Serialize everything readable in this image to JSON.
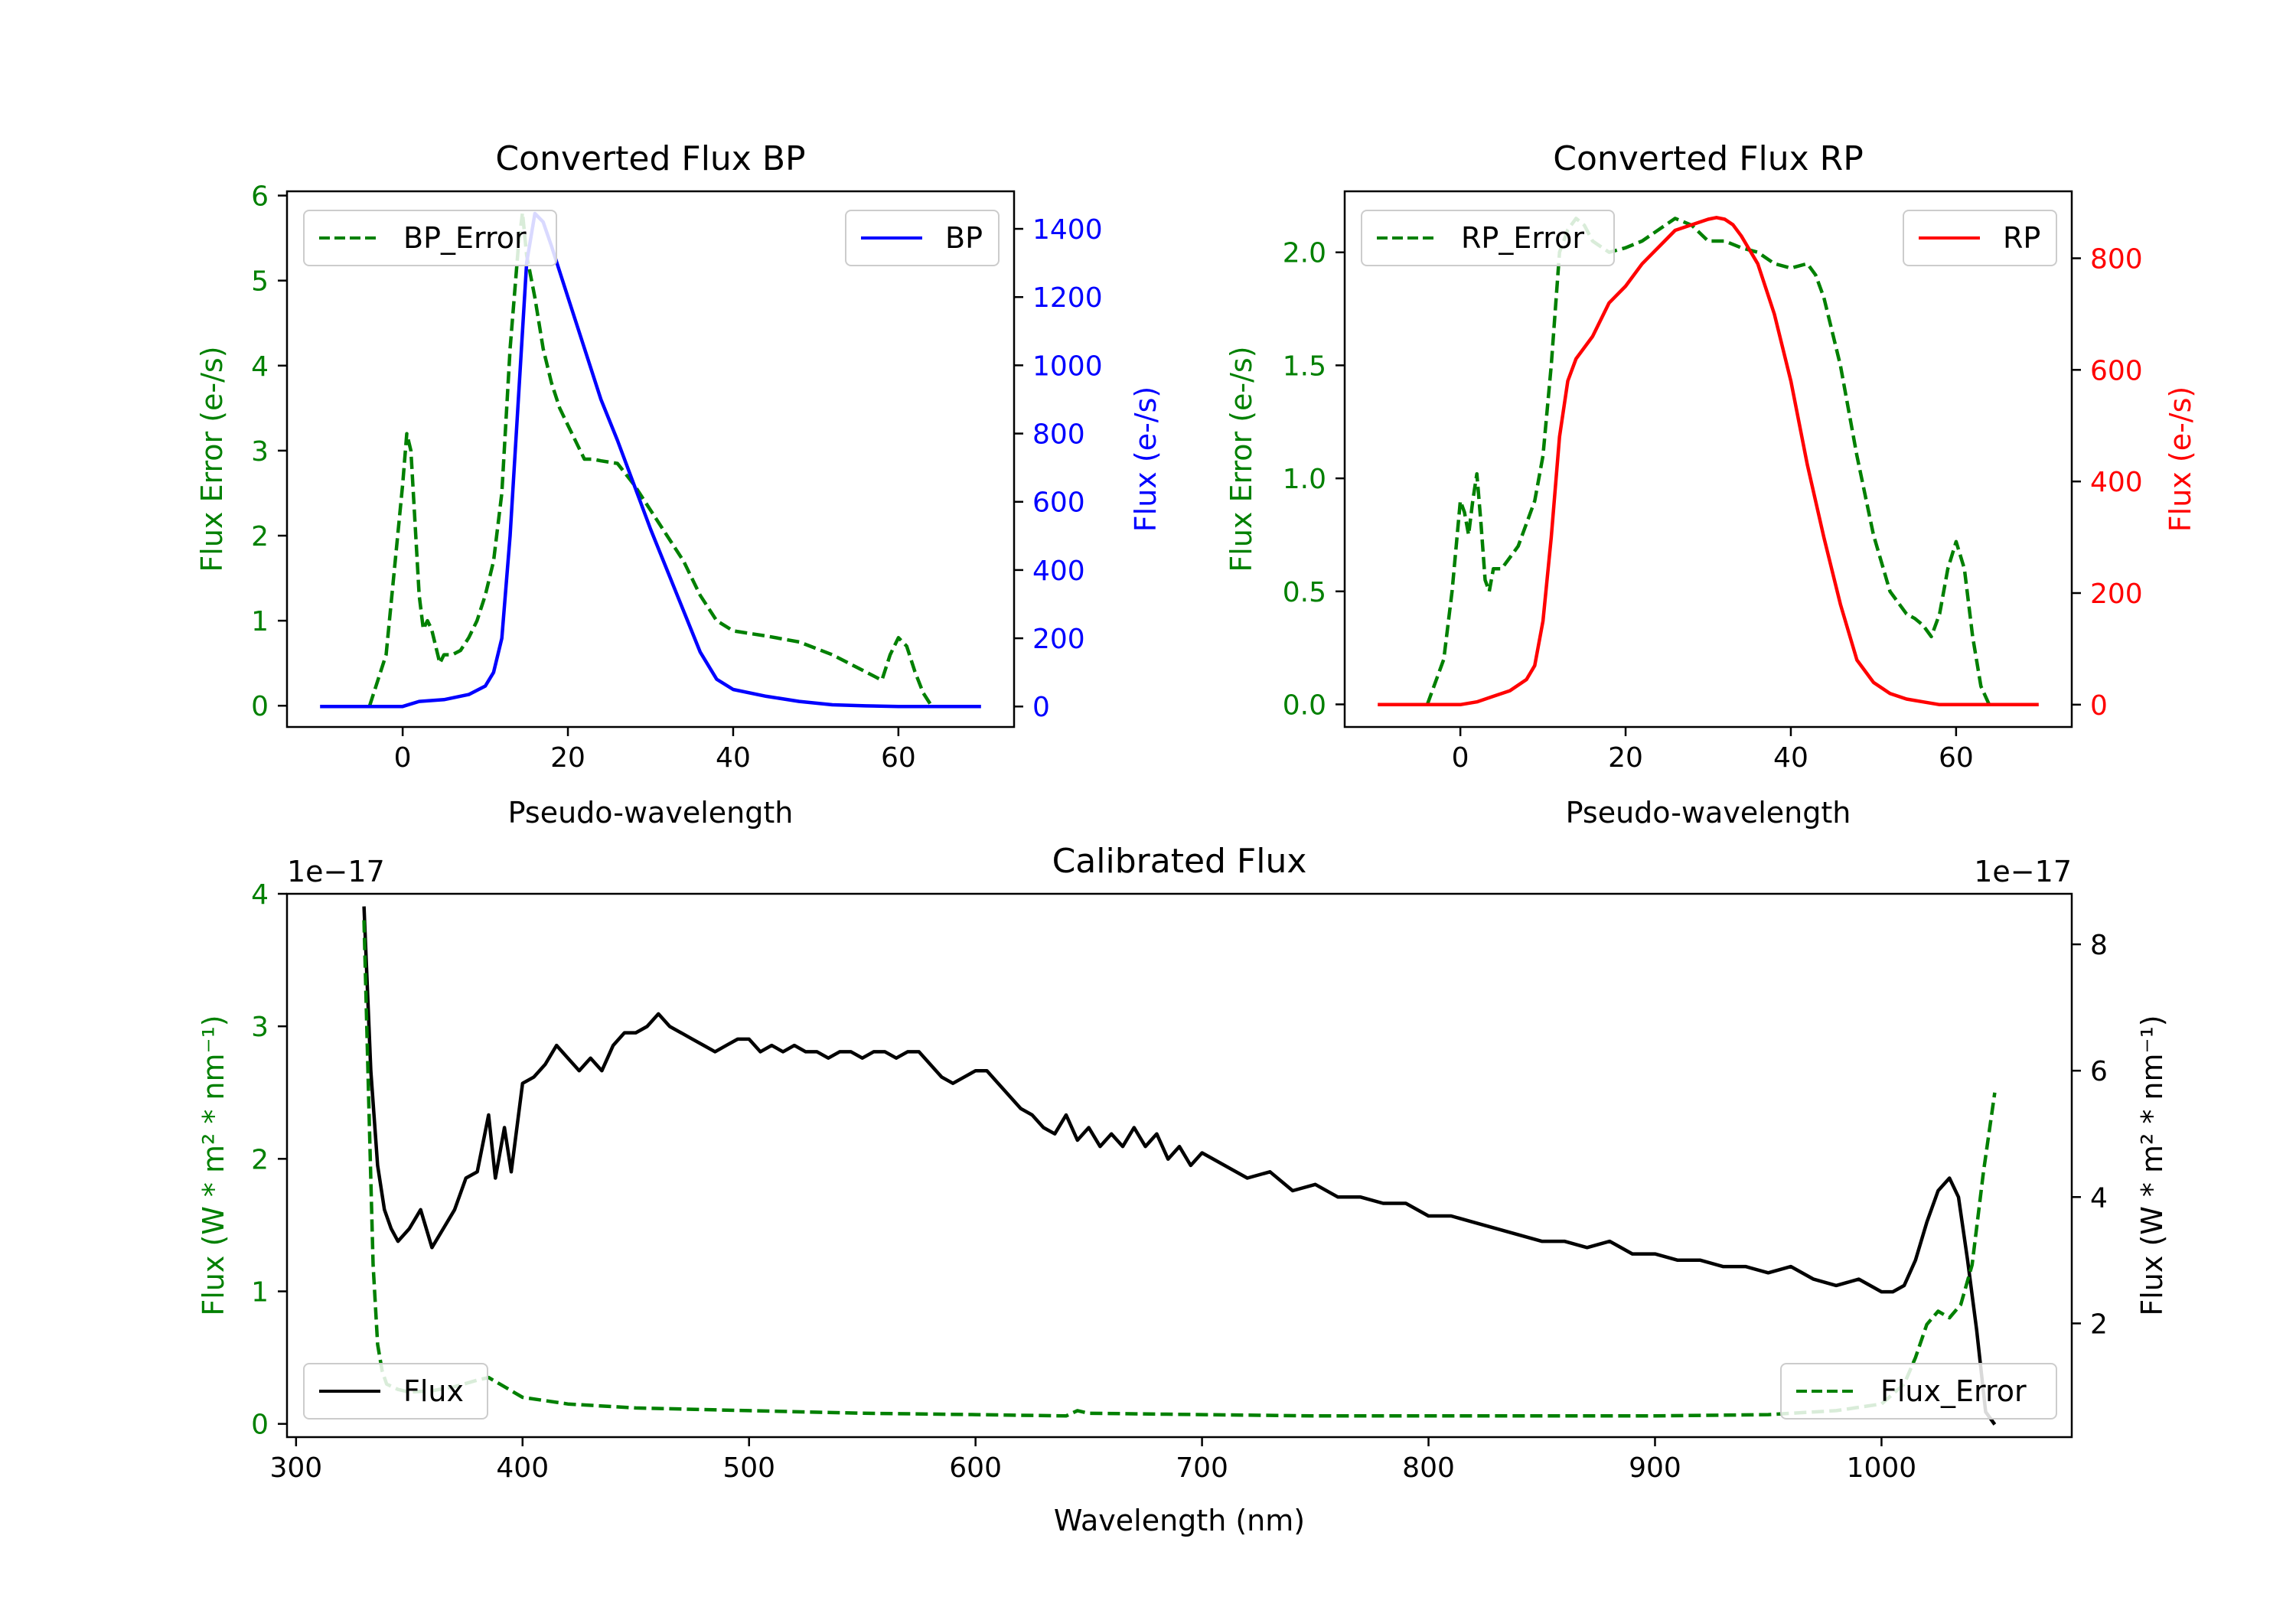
{
  "colors": {
    "green": "#008000",
    "blue": "#0000ff",
    "red": "#ff0000",
    "black": "#000000",
    "axis": "#000000",
    "legend_edge": "#cccccc"
  },
  "chart_data": [
    {
      "id": "bp",
      "type": "line",
      "title": "Converted Flux BP",
      "xlabel": "Pseudo-wavelength",
      "ylabel_left": "Flux Error (e-/s)",
      "ylabel_right": "Flux (e-/s)",
      "xlim": [
        -14,
        74
      ],
      "ylim_left": [
        -0.25,
        6.05
      ],
      "ylim_right": [
        -60,
        1510
      ],
      "xticks": [
        0,
        20,
        40,
        60
      ],
      "yticks_left": [
        0,
        1,
        2,
        3,
        4,
        5,
        6
      ],
      "yticks_right": [
        0,
        200,
        400,
        600,
        800,
        1000,
        1200,
        1400
      ],
      "right_color": "#0000ff",
      "series": [
        {
          "name": "BP_Error",
          "axis": "left",
          "style": "dashed",
          "color": "#008000",
          "legend_loc": "upper-left",
          "x": [
            -4,
            -2,
            0,
            0.5,
            1,
            2,
            2.5,
            3,
            3.5,
            4,
            4.5,
            5,
            6,
            7,
            8,
            9,
            10,
            11,
            12,
            13,
            14,
            14.5,
            15,
            16,
            17,
            18,
            19,
            20,
            21,
            22,
            23,
            24,
            26,
            28,
            30,
            32,
            34,
            36,
            38,
            40,
            44,
            48,
            52,
            56,
            58,
            59,
            60,
            61,
            62,
            63,
            64
          ],
          "y": [
            0,
            0.6,
            2.6,
            3.2,
            3.0,
            1.3,
            0.9,
            1.0,
            0.9,
            0.7,
            0.5,
            0.6,
            0.6,
            0.65,
            0.8,
            1.0,
            1.3,
            1.7,
            2.5,
            4.2,
            5.4,
            5.8,
            5.3,
            4.8,
            4.2,
            3.8,
            3.5,
            3.3,
            3.1,
            2.9,
            2.9,
            2.88,
            2.85,
            2.6,
            2.3,
            2.0,
            1.7,
            1.3,
            1.0,
            0.88,
            0.82,
            0.75,
            0.6,
            0.4,
            0.3,
            0.6,
            0.8,
            0.7,
            0.4,
            0.15,
            0.0
          ]
        },
        {
          "name": "BP",
          "axis": "right",
          "style": "solid",
          "color": "#0000ff",
          "legend_loc": "upper-right",
          "x": [
            -10,
            0,
            2,
            5,
            8,
            10,
            11,
            12,
            13,
            14,
            15,
            16,
            17,
            18,
            20,
            22,
            24,
            26,
            28,
            30,
            32,
            34,
            36,
            38,
            40,
            44,
            48,
            52,
            56,
            60,
            64,
            70
          ],
          "y": [
            0,
            0,
            15,
            20,
            35,
            60,
            100,
            200,
            500,
            900,
            1300,
            1445,
            1420,
            1350,
            1200,
            1050,
            900,
            780,
            650,
            520,
            400,
            280,
            160,
            80,
            50,
            30,
            15,
            5,
            2,
            0,
            0,
            0
          ]
        }
      ]
    },
    {
      "id": "rp",
      "type": "line",
      "title": "Converted Flux RP",
      "xlabel": "Pseudo-wavelength",
      "ylabel_left": "Flux Error (e-/s)",
      "ylabel_right": "Flux (e-/s)",
      "xlim": [
        -14,
        74
      ],
      "ylim_left": [
        -0.1,
        2.27
      ],
      "ylim_right": [
        -40,
        920
      ],
      "xticks": [
        0,
        20,
        40,
        60
      ],
      "yticks_left": [
        0.0,
        0.5,
        1.0,
        1.5,
        2.0
      ],
      "yticks_right": [
        0,
        200,
        400,
        600,
        800
      ],
      "right_color": "#ff0000",
      "series": [
        {
          "name": "RP_Error",
          "axis": "left",
          "style": "dashed",
          "color": "#008000",
          "legend_loc": "upper-left",
          "x": [
            -4,
            -2,
            -1,
            0,
            0.5,
            1,
            1.5,
            2,
            2.5,
            3,
            3.5,
            4,
            5,
            6,
            7,
            8,
            9,
            10,
            11,
            12,
            13,
            14,
            15,
            16,
            18,
            20,
            22,
            24,
            26,
            28,
            30,
            32,
            34,
            36,
            38,
            40,
            42,
            43,
            44,
            46,
            48,
            50,
            52,
            54,
            55,
            56,
            57,
            58,
            59,
            60,
            61,
            62,
            63,
            64
          ],
          "y": [
            0,
            0.2,
            0.5,
            0.9,
            0.85,
            0.75,
            0.9,
            1.02,
            0.8,
            0.55,
            0.5,
            0.6,
            0.6,
            0.65,
            0.7,
            0.8,
            0.9,
            1.1,
            1.5,
            2.0,
            2.1,
            2.15,
            2.12,
            2.05,
            2.0,
            2.02,
            2.05,
            2.1,
            2.15,
            2.12,
            2.05,
            2.05,
            2.02,
            2.0,
            1.95,
            1.93,
            1.95,
            1.9,
            1.8,
            1.5,
            1.1,
            0.75,
            0.5,
            0.4,
            0.38,
            0.35,
            0.3,
            0.4,
            0.6,
            0.72,
            0.6,
            0.3,
            0.08,
            0.0
          ]
        },
        {
          "name": "RP",
          "axis": "right",
          "style": "solid",
          "color": "#ff0000",
          "legend_loc": "upper-right",
          "x": [
            -10,
            0,
            2,
            4,
            6,
            8,
            9,
            10,
            11,
            12,
            13,
            14,
            16,
            18,
            20,
            22,
            24,
            26,
            28,
            30,
            31,
            32,
            33,
            34,
            36,
            38,
            40,
            42,
            44,
            46,
            48,
            50,
            52,
            54,
            56,
            58,
            60,
            65,
            70
          ],
          "y": [
            0,
            0,
            5,
            15,
            25,
            45,
            70,
            150,
            300,
            480,
            580,
            620,
            660,
            720,
            750,
            790,
            820,
            850,
            860,
            870,
            873,
            870,
            860,
            840,
            790,
            700,
            580,
            430,
            300,
            180,
            80,
            40,
            20,
            10,
            5,
            0,
            0,
            0,
            0
          ]
        }
      ]
    },
    {
      "id": "cal",
      "type": "line",
      "title": "Calibrated Flux",
      "xlabel": "Wavelength (nm)",
      "ylabel_left": "Flux (W * m² * nm⁻¹)",
      "ylabel_right": "Flux (W * m² * nm⁻¹)",
      "offset_left": "1e−17",
      "offset_right": "1e−17",
      "xlim": [
        296,
        1084
      ],
      "ylim_left": [
        -0.1,
        4.0
      ],
      "ylim_right": [
        0.2,
        8.8
      ],
      "xticks": [
        300,
        400,
        500,
        600,
        700,
        800,
        900,
        1000
      ],
      "yticks_left": [
        0,
        1,
        2,
        3,
        4
      ],
      "yticks_right": [
        2,
        4,
        6,
        8
      ],
      "right_color": "#000000",
      "series": [
        {
          "name": "Flux",
          "axis": "right",
          "style": "solid",
          "color": "#000000",
          "legend_loc": "lower-left",
          "x": [
            330,
            333,
            336,
            339,
            342,
            345,
            350,
            355,
            360,
            365,
            370,
            375,
            380,
            385,
            388,
            392,
            395,
            400,
            405,
            410,
            415,
            420,
            425,
            430,
            435,
            440,
            445,
            450,
            455,
            460,
            465,
            470,
            475,
            480,
            485,
            490,
            495,
            500,
            505,
            510,
            515,
            520,
            525,
            530,
            535,
            540,
            545,
            550,
            555,
            560,
            565,
            570,
            575,
            580,
            585,
            590,
            595,
            600,
            605,
            610,
            615,
            620,
            625,
            630,
            635,
            640,
            645,
            650,
            655,
            660,
            665,
            670,
            675,
            680,
            685,
            690,
            695,
            700,
            710,
            720,
            730,
            740,
            750,
            760,
            770,
            780,
            790,
            800,
            810,
            820,
            830,
            840,
            850,
            860,
            870,
            880,
            890,
            900,
            910,
            920,
            930,
            940,
            950,
            960,
            970,
            980,
            990,
            1000,
            1005,
            1010,
            1015,
            1020,
            1025,
            1030,
            1034,
            1038,
            1042,
            1046,
            1050
          ],
          "y": [
            8.6,
            6.0,
            4.5,
            3.8,
            3.5,
            3.3,
            3.5,
            3.8,
            3.2,
            3.5,
            3.8,
            4.3,
            4.4,
            5.3,
            4.3,
            5.1,
            4.4,
            5.8,
            5.9,
            6.1,
            6.4,
            6.2,
            6.0,
            6.2,
            6.0,
            6.4,
            6.6,
            6.6,
            6.7,
            6.9,
            6.7,
            6.6,
            6.5,
            6.4,
            6.3,
            6.4,
            6.5,
            6.5,
            6.3,
            6.4,
            6.3,
            6.4,
            6.3,
            6.3,
            6.2,
            6.3,
            6.3,
            6.2,
            6.3,
            6.3,
            6.2,
            6.3,
            6.3,
            6.1,
            5.9,
            5.8,
            5.9,
            6.0,
            6.0,
            5.8,
            5.6,
            5.4,
            5.3,
            5.1,
            5.0,
            5.3,
            4.9,
            5.1,
            4.8,
            5.0,
            4.8,
            5.1,
            4.8,
            5.0,
            4.6,
            4.8,
            4.5,
            4.7,
            4.5,
            4.3,
            4.4,
            4.1,
            4.2,
            4.0,
            4.0,
            3.9,
            3.9,
            3.7,
            3.7,
            3.6,
            3.5,
            3.4,
            3.3,
            3.3,
            3.2,
            3.3,
            3.1,
            3.1,
            3.0,
            3.0,
            2.9,
            2.9,
            2.8,
            2.9,
            2.7,
            2.6,
            2.7,
            2.5,
            2.5,
            2.6,
            3.0,
            3.6,
            4.1,
            4.3,
            4.0,
            3.0,
            1.9,
            0.6,
            0.4
          ]
        },
        {
          "name": "Flux_Error",
          "axis": "left",
          "style": "dashed",
          "color": "#008000",
          "legend_loc": "lower-right",
          "x": [
            330,
            332,
            334,
            336,
            338,
            340,
            345,
            350,
            360,
            370,
            380,
            385,
            390,
            400,
            420,
            450,
            500,
            550,
            600,
            640,
            645,
            650,
            700,
            750,
            800,
            850,
            900,
            950,
            980,
            1000,
            1010,
            1015,
            1020,
            1025,
            1030,
            1035,
            1040,
            1045,
            1050
          ],
          "y": [
            3.8,
            2.5,
            1.2,
            0.6,
            0.4,
            0.3,
            0.26,
            0.24,
            0.25,
            0.28,
            0.33,
            0.35,
            0.3,
            0.2,
            0.15,
            0.12,
            0.1,
            0.08,
            0.07,
            0.06,
            0.1,
            0.08,
            0.07,
            0.06,
            0.06,
            0.06,
            0.06,
            0.07,
            0.1,
            0.15,
            0.3,
            0.5,
            0.75,
            0.85,
            0.8,
            0.9,
            1.2,
            1.9,
            2.5
          ]
        }
      ]
    }
  ]
}
